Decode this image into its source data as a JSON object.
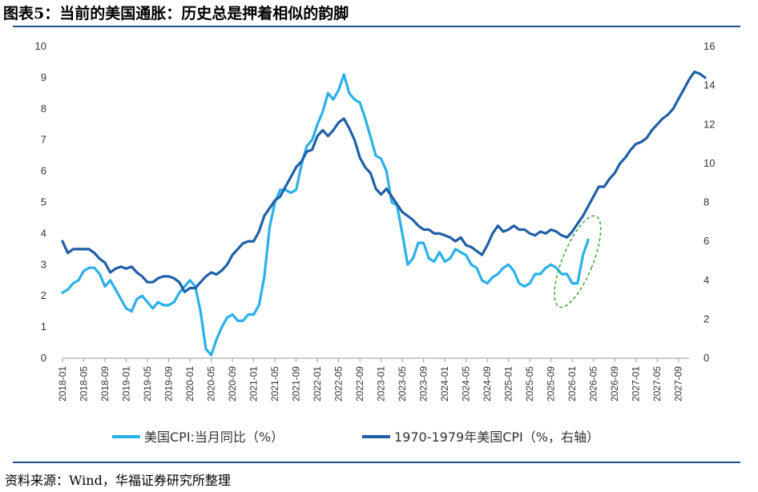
{
  "header": {
    "title": "图表5：当前的美国通胀：历史总是押着相似的韵脚"
  },
  "footer": {
    "source": "资料来源：Wind，华福证券研究所整理"
  },
  "colors": {
    "series_current": "#2ab0e8",
    "series_1970s": "#1f5fa6",
    "rule": "#1f4e8c",
    "ellipse": "#3aa832"
  },
  "chart_data": {
    "type": "line",
    "title": "",
    "x_ticks": [
      "2018-01",
      "2018-05",
      "2018-09",
      "2019-01",
      "2019-05",
      "2019-09",
      "2020-01",
      "2020-05",
      "2020-09",
      "2021-01",
      "2021-05",
      "2021-09",
      "2022-01",
      "2022-05",
      "2022-09",
      "2023-01",
      "2023-05",
      "2023-09",
      "2024-01",
      "2024-05",
      "2024-09",
      "2025-01",
      "2025-05",
      "2025-09",
      "2026-01",
      "2026-05",
      "2026-09",
      "2027-01",
      "2027-05",
      "2027-09"
    ],
    "y_left": {
      "min": 0,
      "max": 10,
      "ticks": [
        0,
        1,
        2,
        3,
        4,
        5,
        6,
        7,
        8,
        9,
        10
      ]
    },
    "y_right": {
      "min": 0,
      "max": 16,
      "ticks": [
        0,
        2,
        4,
        6,
        8,
        10,
        12,
        14,
        16
      ]
    },
    "grid": false,
    "legend_position": "bottom",
    "series": [
      {
        "name": "美国CPI:当月同比（%）",
        "axis": "left",
        "start": "2018-01",
        "values": [
          2.1,
          2.2,
          2.4,
          2.5,
          2.8,
          2.9,
          2.9,
          2.7,
          2.3,
          2.5,
          2.2,
          1.9,
          1.6,
          1.5,
          1.9,
          2.0,
          1.8,
          1.6,
          1.8,
          1.7,
          1.7,
          1.8,
          2.1,
          2.3,
          2.5,
          2.3,
          1.5,
          0.3,
          0.1,
          0.6,
          1.0,
          1.3,
          1.4,
          1.2,
          1.2,
          1.4,
          1.4,
          1.7,
          2.6,
          4.2,
          5.0,
          5.4,
          5.4,
          5.3,
          5.4,
          6.2,
          6.8,
          7.0,
          7.5,
          7.9,
          8.5,
          8.3,
          8.6,
          9.1,
          8.5,
          8.3,
          8.2,
          7.7,
          7.1,
          6.5,
          6.4,
          6.0,
          5.0,
          4.9,
          4.0,
          3.0,
          3.2,
          3.7,
          3.7,
          3.2,
          3.1,
          3.4,
          3.1,
          3.2,
          3.5,
          3.4,
          3.3,
          3.0,
          2.9,
          2.5,
          2.4,
          2.6,
          2.7,
          2.9,
          3.0,
          2.8,
          2.4,
          2.3,
          2.4,
          2.7,
          2.7,
          2.9,
          3.0,
          2.9,
          2.7,
          2.7,
          2.4,
          2.4,
          3.3,
          3.8
        ],
        "labels": []
      },
      {
        "name": "1970-1979年美国CPI（%，右轴）",
        "axis": "right",
        "start": "2018-01",
        "values": [
          6.0,
          5.4,
          5.6,
          5.6,
          5.6,
          5.6,
          5.4,
          5.1,
          4.9,
          4.4,
          4.6,
          4.7,
          4.6,
          4.7,
          4.4,
          4.2,
          3.9,
          3.9,
          4.1,
          4.2,
          4.2,
          4.1,
          3.9,
          3.4,
          3.6,
          3.6,
          3.9,
          4.2,
          4.4,
          4.3,
          4.5,
          4.8,
          5.3,
          5.6,
          5.9,
          6.0,
          6.0,
          6.5,
          7.3,
          7.7,
          8.1,
          8.3,
          8.8,
          9.3,
          9.8,
          10.1,
          10.6,
          10.7,
          11.4,
          11.7,
          11.4,
          11.7,
          12.1,
          12.3,
          11.8,
          11.2,
          10.3,
          9.8,
          9.5,
          8.7,
          8.4,
          8.7,
          8.3,
          7.9,
          7.5,
          7.3,
          7.1,
          6.8,
          6.6,
          6.6,
          6.4,
          6.4,
          6.3,
          6.2,
          6.0,
          6.2,
          5.8,
          5.7,
          5.5,
          5.3,
          5.8,
          6.4,
          6.8,
          6.5,
          6.6,
          6.8,
          6.6,
          6.6,
          6.4,
          6.3,
          6.5,
          6.4,
          6.6,
          6.5,
          6.3,
          6.2,
          6.5,
          6.9,
          7.3,
          7.8,
          8.3,
          8.8,
          8.8,
          9.2,
          9.5,
          10.0,
          10.3,
          10.7,
          11.0,
          11.1,
          11.3,
          11.7,
          12.0,
          12.3,
          12.5,
          12.8,
          13.3,
          13.8,
          14.3,
          14.7,
          14.6,
          14.4
        ],
        "labels": []
      }
    ],
    "annotations": [
      {
        "type": "ellipse",
        "style": "dashed"
      }
    ]
  }
}
